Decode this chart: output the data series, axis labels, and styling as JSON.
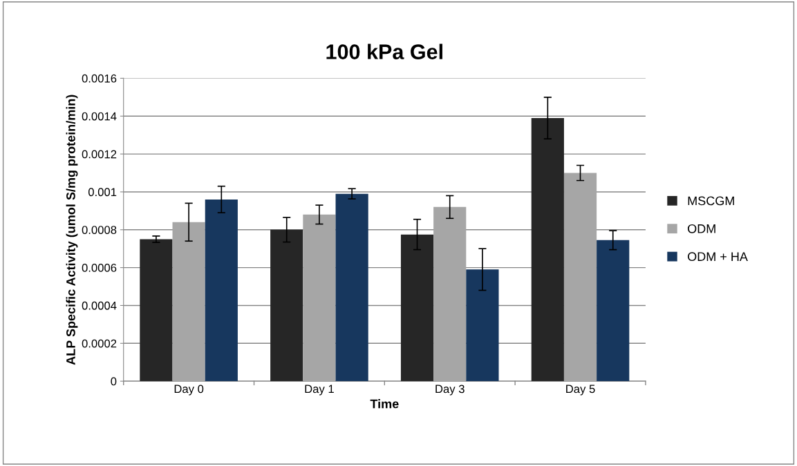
{
  "chart_data": {
    "type": "bar",
    "title": "100 kPa Gel",
    "xlabel": "Time",
    "ylabel": "ALP Specific Activity (umol S/mg protein/min)",
    "categories": [
      "Day 0",
      "Day 1",
      "Day 3",
      "Day 5"
    ],
    "series": [
      {
        "name": "MSCGM",
        "color": "#262626",
        "values": [
          0.00075,
          0.0008,
          0.000775,
          0.00139
        ],
        "errors": [
          1.7e-05,
          6.5e-05,
          8e-05,
          0.00011
        ]
      },
      {
        "name": "ODM",
        "color": "#a6a6a6",
        "values": [
          0.00084,
          0.00088,
          0.00092,
          0.0011
        ],
        "errors": [
          0.0001,
          5e-05,
          6e-05,
          4e-05
        ]
      },
      {
        "name": "ODM + HA",
        "color": "#17375e",
        "values": [
          0.00096,
          0.00099,
          0.00059,
          0.000745
        ],
        "errors": [
          7e-05,
          2.7e-05,
          0.00011,
          5e-05
        ]
      }
    ],
    "ylim": [
      0,
      0.0016
    ],
    "yticks": [
      0,
      0.0002,
      0.0004,
      0.0006,
      0.0008,
      0.001,
      0.0012,
      0.0014,
      0.0016
    ],
    "grid": "y",
    "legend": "right"
  }
}
